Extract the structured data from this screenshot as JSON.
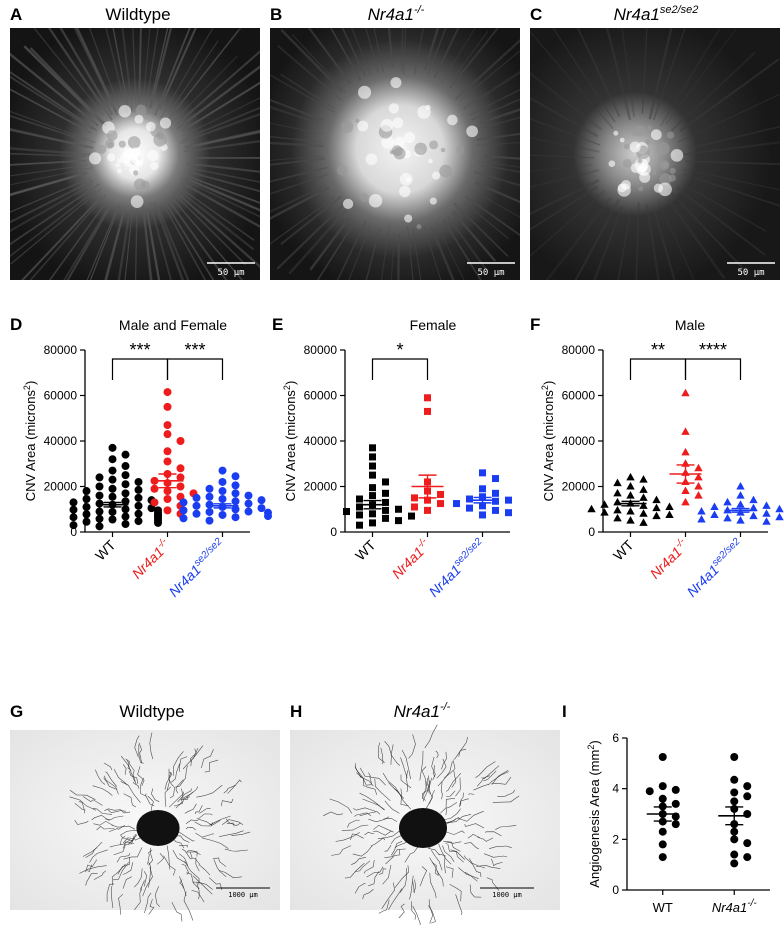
{
  "panels": {
    "A": {
      "letter": "A",
      "title": "Wildtype",
      "scale_bar": "50 μm"
    },
    "B": {
      "letter": "B",
      "title_base": "Nr4a1",
      "title_sup": "-/-",
      "scale_bar": "50 μm"
    },
    "C": {
      "letter": "C",
      "title_base": "Nr4a1",
      "title_sup": "se2/se2",
      "scale_bar": "50 μm"
    },
    "G": {
      "letter": "G",
      "title": "Wildtype",
      "scale_bar": "1000 μm"
    },
    "H": {
      "letter": "H",
      "title_base": "Nr4a1",
      "title_sup": "-/-",
      "scale_bar": "1000 μm"
    }
  },
  "colors": {
    "wt": "#000000",
    "ko": "#ee1c1c",
    "se2": "#1b3df2"
  },
  "chart_data": [
    {
      "id": "D",
      "letter": "D",
      "type": "scatter",
      "title": "Male and Female",
      "ylabel": "CNV Area (microns",
      "ylabel_sup": "2",
      "ylabel_tail": ")",
      "ylim": [
        0,
        80000
      ],
      "yticks": [
        "0",
        "20000",
        "40000",
        "60000",
        "80000"
      ],
      "marker": "circle",
      "categories": [
        {
          "base": "WT",
          "sup": "",
          "color": "#000000"
        },
        {
          "base": "Nr4a1",
          "sup": "-/-",
          "color": "#ee1c1c"
        },
        {
          "base": "Nr4a1",
          "sup": "se2/se2",
          "color": "#1b3df2"
        }
      ],
      "series": [
        {
          "values": [
            37000,
            34000,
            32000,
            29000,
            27000,
            25000,
            24000,
            23000,
            22000,
            21000,
            20000,
            19000,
            18500,
            18000,
            17000,
            16000,
            15500,
            15000,
            14500,
            14000,
            13500,
            13000,
            12500,
            12000,
            11500,
            11000,
            10500,
            10000,
            9800,
            9500,
            9000,
            8800,
            8500,
            8000,
            7800,
            7500,
            7000,
            6800,
            6500,
            6000,
            5800,
            5500,
            5000,
            4800,
            4500,
            4000,
            3500,
            3000,
            2500
          ],
          "mean": 12000,
          "sem": 1000
        },
        {
          "values": [
            61500,
            55000,
            47000,
            43000,
            40000,
            35500,
            31000,
            28000,
            25500,
            24000,
            22500,
            21500,
            20000,
            19000,
            18000,
            17000,
            15500,
            14500,
            13000,
            11500,
            9500,
            8000
          ],
          "mean": 22500,
          "sem": 3000
        },
        {
          "values": [
            27000,
            24500,
            22000,
            20500,
            19000,
            18000,
            17000,
            16000,
            15500,
            15000,
            14500,
            14000,
            13500,
            13000,
            12500,
            12000,
            11500,
            11000,
            10500,
            10000,
            9500,
            9000,
            8800,
            8500,
            8000,
            7500,
            7000,
            6500,
            6000,
            5000
          ],
          "mean": 11500,
          "sem": 900
        }
      ],
      "comparisons": [
        {
          "from": 0,
          "to": 1,
          "label": "***"
        },
        {
          "from": 1,
          "to": 2,
          "label": "***"
        }
      ]
    },
    {
      "id": "E",
      "letter": "E",
      "type": "scatter",
      "title": "Female",
      "ylabel": "CNV Area (microns",
      "ylabel_sup": "2",
      "ylabel_tail": ")",
      "ylim": [
        0,
        80000
      ],
      "yticks": [
        "0",
        "20000",
        "40000",
        "60000",
        "80000"
      ],
      "marker": "square",
      "categories": [
        {
          "base": "WT",
          "sup": "",
          "color": "#000000"
        },
        {
          "base": "Nr4a1",
          "sup": "-/-",
          "color": "#ee1c1c"
        },
        {
          "base": "Nr4a1",
          "sup": "se2/se2",
          "color": "#1b3df2"
        }
      ],
      "series": [
        {
          "values": [
            37000,
            33000,
            29000,
            25000,
            22000,
            19500,
            17000,
            16000,
            14500,
            13000,
            12000,
            11000,
            10000,
            9500,
            9000,
            8000,
            7500,
            7000,
            6000,
            5000,
            4000,
            3000
          ],
          "mean": 12000,
          "sem": 1800
        },
        {
          "values": [
            59000,
            53000,
            22000,
            18000,
            16500,
            15000,
            14000,
            12500,
            11000,
            9500
          ],
          "mean": 20000,
          "sem": 5000
        },
        {
          "values": [
            26000,
            23500,
            19000,
            17000,
            15500,
            14500,
            14000,
            13500,
            12500,
            11500,
            10500,
            9500,
            8500,
            7500
          ],
          "mean": 14000,
          "sem": 1200
        }
      ],
      "comparisons": [
        {
          "from": 0,
          "to": 1,
          "label": "*"
        }
      ]
    },
    {
      "id": "F",
      "letter": "F",
      "type": "scatter",
      "title": "Male",
      "ylabel": "CNV Area (microns",
      "ylabel_sup": "2",
      "ylabel_tail": ")",
      "ylim": [
        0,
        80000
      ],
      "yticks": [
        "0",
        "20000",
        "40000",
        "60000",
        "80000"
      ],
      "marker": "triangle",
      "categories": [
        {
          "base": "WT",
          "sup": "",
          "color": "#000000"
        },
        {
          "base": "Nr4a1",
          "sup": "-/-",
          "color": "#ee1c1c"
        },
        {
          "base": "Nr4a1",
          "sup": "se2/se2",
          "color": "#1b3df2"
        }
      ],
      "series": [
        {
          "values": [
            24000,
            23000,
            21500,
            20000,
            18500,
            17000,
            16000,
            15000,
            14000,
            13000,
            12500,
            12000,
            11500,
            11000,
            10500,
            10000,
            9500,
            9000,
            8500,
            8000,
            7500,
            7000,
            6000,
            5000,
            4000
          ],
          "mean": 12500,
          "sem": 1000
        },
        {
          "values": [
            61000,
            44000,
            35000,
            30000,
            28000,
            26000,
            24000,
            22000,
            20000,
            18000,
            16000,
            13000
          ],
          "mean": 25500,
          "sem": 4000
        },
        {
          "values": [
            20000,
            16000,
            14000,
            13000,
            12000,
            11500,
            11000,
            10500,
            10000,
            9500,
            9000,
            8500,
            8000,
            7500,
            7000,
            6500,
            6000,
            5500,
            5000,
            4500
          ],
          "mean": 9500,
          "sem": 800
        }
      ],
      "comparisons": [
        {
          "from": 0,
          "to": 1,
          "label": "**"
        },
        {
          "from": 1,
          "to": 2,
          "label": "****"
        }
      ]
    },
    {
      "id": "I",
      "letter": "I",
      "type": "scatter",
      "title": "",
      "ylabel": "Angiogenesis Area (mm",
      "ylabel_sup": "2",
      "ylabel_tail": ")",
      "ylim": [
        0,
        6
      ],
      "yticks": [
        "0",
        "2",
        "4",
        "6"
      ],
      "marker": "circle",
      "categories": [
        {
          "base": "WT",
          "sup": "",
          "color": "#000000"
        },
        {
          "base": "Nr4a1",
          "sup": "-/-",
          "color": "#000000"
        }
      ],
      "series": [
        {
          "values": [
            5.25,
            4.1,
            3.95,
            3.9,
            3.6,
            3.4,
            3.3,
            3.0,
            2.9,
            2.7,
            2.6,
            2.3,
            1.8,
            1.3
          ],
          "mean": 3.0,
          "sem": 0.28
        },
        {
          "values": [
            5.25,
            4.35,
            4.1,
            3.85,
            3.7,
            3.5,
            3.2,
            3.0,
            2.6,
            2.3,
            2.0,
            1.85,
            1.4,
            1.3,
            1.05
          ],
          "mean": 2.93,
          "sem": 0.35
        }
      ],
      "comparisons": []
    }
  ]
}
